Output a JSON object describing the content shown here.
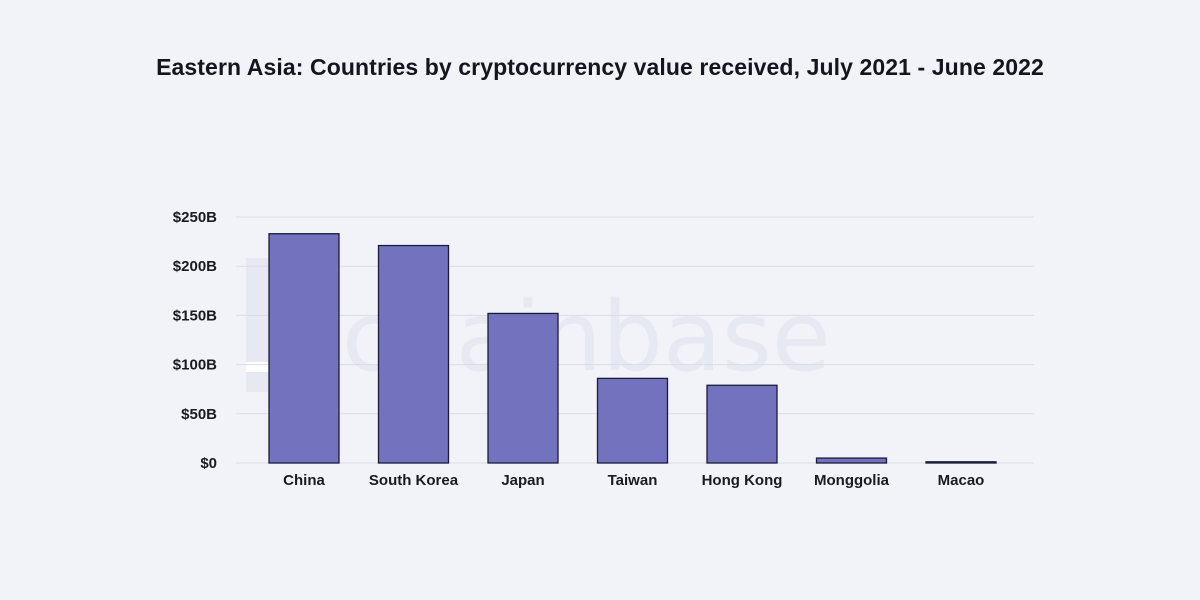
{
  "watermark": "chainbase",
  "colors": {
    "background": "#f2f3f8",
    "bar_fill": "#7272bf",
    "bar_stroke": "#1b1b3a",
    "gridline": "#d9dde8",
    "watermark": "#e6e9f1"
  },
  "chart_data": {
    "type": "bar",
    "title": "Eastern Asia: Countries by cryptocurrency value received, July 2021 - June 2022",
    "xlabel": "",
    "ylabel": "",
    "categories": [
      "China",
      "South Korea",
      "Japan",
      "Taiwan",
      "Hong Kong",
      "Monggolia",
      "Macao"
    ],
    "values": [
      233,
      221,
      152,
      86,
      79,
      5,
      1
    ],
    "ylim": [
      0,
      250
    ],
    "yticks": [
      0,
      50,
      100,
      150,
      200,
      250
    ],
    "ytick_labels": [
      "$0",
      "$50B",
      "$100B",
      "$150B",
      "$200B",
      "$250B"
    ],
    "grid": true,
    "legend": "none"
  }
}
